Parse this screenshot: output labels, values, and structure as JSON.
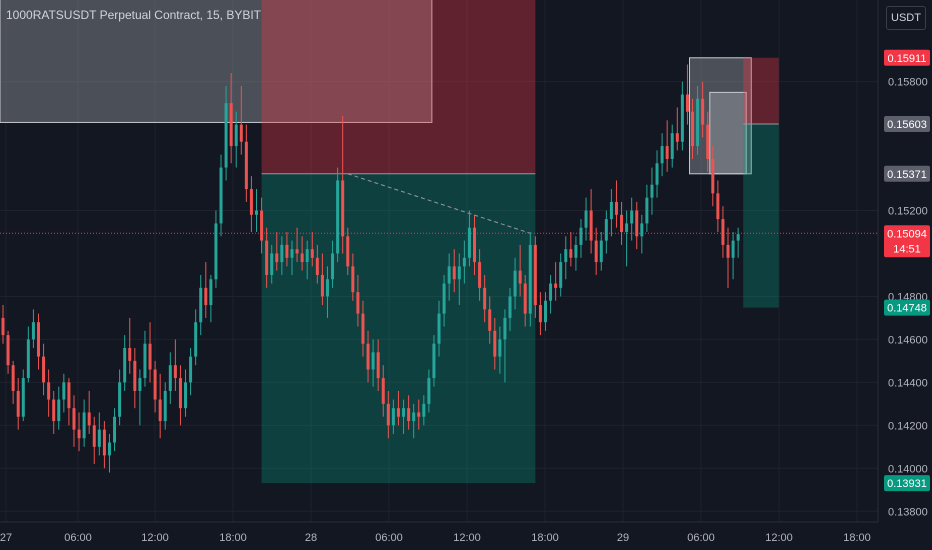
{
  "header": {
    "title": "1000RATSUSDT Perpetual Contract, 15, BYBIT",
    "currency_button": "USDT"
  },
  "colors": {
    "background": "#131722",
    "up": "#26a69a",
    "down": "#ef5350",
    "grid": "#1e222d",
    "axis_text": "#b2b5be"
  },
  "chart_data": {
    "type": "candlestick",
    "title": "1000RATSUSDT Perpetual Contract, 15, BYBIT",
    "ylim": [
      0.1375,
      0.1618
    ],
    "y_ticks": [
      "0.15800",
      "0.15200",
      "0.14800",
      "0.14600",
      "0.14400",
      "0.14200",
      "0.14000",
      "0.13800"
    ],
    "x_ticks": [
      "27",
      "06:00",
      "12:00",
      "18:00",
      "28",
      "06:00",
      "12:00",
      "18:00",
      "29",
      "06:00",
      "12:00",
      "18:00"
    ],
    "price_labels": [
      {
        "text": "0.15911",
        "value": 0.15911,
        "kind": "red"
      },
      {
        "text": "0.15603",
        "value": 0.15603,
        "kind": "gray"
      },
      {
        "text": "0.15371",
        "value": 0.15371,
        "kind": "gray"
      },
      {
        "text": "0.15094",
        "value": 0.15094,
        "kind": "current"
      },
      {
        "text": "0.14748",
        "value": 0.14748,
        "kind": "green"
      },
      {
        "text": "0.13931",
        "value": 0.13931,
        "kind": "green"
      }
    ],
    "countdown": "14:51",
    "current_price": 0.15094,
    "overlays": [
      {
        "kind": "box",
        "color": "gray",
        "bars": [
          0,
          84
        ],
        "price": [
          0.1561,
          0.1627
        ]
      },
      {
        "kind": "short-position",
        "bars": [
          51,
          105
        ],
        "entry": 0.15371,
        "stop": 0.1627,
        "target": 0.13931
      },
      {
        "kind": "box",
        "color": "gray",
        "bars": [
          136,
          147
        ],
        "price": [
          0.15371,
          0.15911
        ]
      },
      {
        "kind": "box",
        "color": "gray",
        "bars": [
          140,
          146
        ],
        "price": [
          0.15371,
          0.1575
        ]
      },
      {
        "kind": "short-position",
        "bars": [
          146,
          153
        ],
        "entry": 0.15603,
        "stop": 0.15911,
        "target": 0.14748
      },
      {
        "kind": "dashed-line",
        "from": [
          68,
          0.15371
        ],
        "to": [
          104,
          0.15094
        ]
      }
    ],
    "ohlc": [
      [
        0.147,
        0.1476,
        0.1458,
        0.1462
      ],
      [
        0.1462,
        0.1464,
        0.1444,
        0.1448
      ],
      [
        0.1448,
        0.145,
        0.143,
        0.1436
      ],
      [
        0.1436,
        0.1442,
        0.1418,
        0.1424
      ],
      [
        0.1424,
        0.1446,
        0.1422,
        0.1442
      ],
      [
        0.1442,
        0.1466,
        0.144,
        0.146
      ],
      [
        0.146,
        0.1474,
        0.1456,
        0.1468
      ],
      [
        0.1468,
        0.1472,
        0.1446,
        0.1452
      ],
      [
        0.1452,
        0.1458,
        0.1434,
        0.144
      ],
      [
        0.144,
        0.1446,
        0.1424,
        0.1432
      ],
      [
        0.1432,
        0.1436,
        0.1416,
        0.1422
      ],
      [
        0.1422,
        0.1438,
        0.1418,
        0.1432
      ],
      [
        0.1432,
        0.1444,
        0.1426,
        0.144
      ],
      [
        0.144,
        0.1442,
        0.142,
        0.1428
      ],
      [
        0.1428,
        0.1434,
        0.141,
        0.1418
      ],
      [
        0.1418,
        0.1426,
        0.1408,
        0.1414
      ],
      [
        0.1414,
        0.1432,
        0.141,
        0.1426
      ],
      [
        0.1426,
        0.1436,
        0.1416,
        0.142
      ],
      [
        0.142,
        0.1424,
        0.1402,
        0.141
      ],
      [
        0.141,
        0.1426,
        0.1406,
        0.1418
      ],
      [
        0.1418,
        0.1422,
        0.14,
        0.1406
      ],
      [
        0.1406,
        0.1416,
        0.1398,
        0.1412
      ],
      [
        0.1412,
        0.1428,
        0.1408,
        0.1424
      ],
      [
        0.1424,
        0.1446,
        0.142,
        0.144
      ],
      [
        0.144,
        0.1462,
        0.1436,
        0.1456
      ],
      [
        0.1456,
        0.147,
        0.1444,
        0.145
      ],
      [
        0.145,
        0.1456,
        0.1428,
        0.1436
      ],
      [
        0.1436,
        0.1446,
        0.142,
        0.1442
      ],
      [
        0.1442,
        0.1464,
        0.1438,
        0.1458
      ],
      [
        0.1458,
        0.1468,
        0.144,
        0.1446
      ],
      [
        0.1446,
        0.145,
        0.1426,
        0.1432
      ],
      [
        0.1432,
        0.1444,
        0.1414,
        0.1422
      ],
      [
        0.1422,
        0.144,
        0.1418,
        0.1436
      ],
      [
        0.1436,
        0.1454,
        0.143,
        0.1448
      ],
      [
        0.1448,
        0.146,
        0.1436,
        0.1442
      ],
      [
        0.1442,
        0.1448,
        0.142,
        0.1428
      ],
      [
        0.1428,
        0.1446,
        0.1424,
        0.144
      ],
      [
        0.144,
        0.1456,
        0.1434,
        0.1452
      ],
      [
        0.1452,
        0.1474,
        0.1448,
        0.1468
      ],
      [
        0.1468,
        0.149,
        0.1462,
        0.1484
      ],
      [
        0.1484,
        0.1496,
        0.147,
        0.1476
      ],
      [
        0.1476,
        0.149,
        0.1468,
        0.1488
      ],
      [
        0.1488,
        0.152,
        0.1484,
        0.1514
      ],
      [
        0.1514,
        0.1546,
        0.1508,
        0.154
      ],
      [
        0.154,
        0.1578,
        0.1534,
        0.157
      ],
      [
        0.157,
        0.1584,
        0.1542,
        0.155
      ],
      [
        0.155,
        0.1566,
        0.154,
        0.156
      ],
      [
        0.156,
        0.1578,
        0.1546,
        0.1552
      ],
      [
        0.1552,
        0.156,
        0.1524,
        0.153
      ],
      [
        0.153,
        0.1536,
        0.151,
        0.1518
      ],
      [
        0.1518,
        0.153,
        0.151,
        0.152
      ],
      [
        0.152,
        0.1526,
        0.15,
        0.1506
      ],
      [
        0.1506,
        0.1512,
        0.1484,
        0.149
      ],
      [
        0.149,
        0.1504,
        0.1486,
        0.15
      ],
      [
        0.15,
        0.151,
        0.1492,
        0.1496
      ],
      [
        0.1496,
        0.1508,
        0.149,
        0.1504
      ],
      [
        0.1504,
        0.151,
        0.1494,
        0.1498
      ],
      [
        0.1498,
        0.1506,
        0.149,
        0.1502
      ],
      [
        0.1502,
        0.1512,
        0.1496,
        0.15
      ],
      [
        0.15,
        0.1508,
        0.1492,
        0.1496
      ],
      [
        0.1496,
        0.1506,
        0.1488,
        0.1502
      ],
      [
        0.1502,
        0.151,
        0.1494,
        0.1498
      ],
      [
        0.1498,
        0.1504,
        0.1486,
        0.149
      ],
      [
        0.149,
        0.15,
        0.1476,
        0.148
      ],
      [
        0.148,
        0.1494,
        0.147,
        0.1488
      ],
      [
        0.1488,
        0.1506,
        0.1484,
        0.15
      ],
      [
        0.15,
        0.154,
        0.1496,
        0.1534
      ],
      [
        0.1534,
        0.1564,
        0.15,
        0.1508
      ],
      [
        0.1508,
        0.1512,
        0.149,
        0.1494
      ],
      [
        0.1494,
        0.15,
        0.1478,
        0.1482
      ],
      [
        0.1482,
        0.149,
        0.1466,
        0.1472
      ],
      [
        0.1472,
        0.1478,
        0.1452,
        0.1458
      ],
      [
        0.1458,
        0.1464,
        0.144,
        0.1446
      ],
      [
        0.1446,
        0.146,
        0.1438,
        0.1454
      ],
      [
        0.1454,
        0.146,
        0.1436,
        0.1442
      ],
      [
        0.1442,
        0.1448,
        0.1424,
        0.143
      ],
      [
        0.143,
        0.1436,
        0.1414,
        0.142
      ],
      [
        0.142,
        0.1432,
        0.1416,
        0.1428
      ],
      [
        0.1428,
        0.1436,
        0.142,
        0.1424
      ],
      [
        0.1424,
        0.1432,
        0.1416,
        0.1428
      ],
      [
        0.1428,
        0.1434,
        0.1418,
        0.1422
      ],
      [
        0.1422,
        0.143,
        0.1414,
        0.1426
      ],
      [
        0.1426,
        0.1432,
        0.1418,
        0.1424
      ],
      [
        0.1424,
        0.1434,
        0.142,
        0.143
      ],
      [
        0.143,
        0.1446,
        0.1426,
        0.1442
      ],
      [
        0.1442,
        0.1462,
        0.1438,
        0.1458
      ],
      [
        0.1458,
        0.1478,
        0.1452,
        0.1472
      ],
      [
        0.1472,
        0.149,
        0.1466,
        0.1486
      ],
      [
        0.1486,
        0.15,
        0.1478,
        0.1494
      ],
      [
        0.1494,
        0.1502,
        0.1482,
        0.1488
      ],
      [
        0.1488,
        0.15,
        0.1476,
        0.1494
      ],
      [
        0.1494,
        0.1506,
        0.1486,
        0.1498
      ],
      [
        0.1498,
        0.152,
        0.1494,
        0.1512
      ],
      [
        0.1512,
        0.1518,
        0.149,
        0.1496
      ],
      [
        0.1496,
        0.1502,
        0.1478,
        0.1484
      ],
      [
        0.1484,
        0.149,
        0.1468,
        0.1474
      ],
      [
        0.1474,
        0.148,
        0.1458,
        0.1464
      ],
      [
        0.1464,
        0.147,
        0.1446,
        0.1452
      ],
      [
        0.1452,
        0.1466,
        0.1444,
        0.146
      ],
      [
        0.146,
        0.1474,
        0.144,
        0.147
      ],
      [
        0.147,
        0.1484,
        0.1464,
        0.148
      ],
      [
        0.148,
        0.1498,
        0.1474,
        0.1492
      ],
      [
        0.1492,
        0.1504,
        0.148,
        0.1486
      ],
      [
        0.1486,
        0.149,
        0.1466,
        0.1472
      ],
      [
        0.1472,
        0.151,
        0.1466,
        0.1504
      ],
      [
        0.1504,
        0.1508,
        0.147,
        0.1476
      ],
      [
        0.1476,
        0.1482,
        0.1462,
        0.1468
      ],
      [
        0.1468,
        0.1482,
        0.1464,
        0.1478
      ],
      [
        0.1478,
        0.149,
        0.1472,
        0.1486
      ],
      [
        0.1486,
        0.1496,
        0.1478,
        0.1484
      ],
      [
        0.1484,
        0.15,
        0.148,
        0.1496
      ],
      [
        0.1496,
        0.1508,
        0.1488,
        0.1502
      ],
      [
        0.1502,
        0.151,
        0.1494,
        0.1498
      ],
      [
        0.1498,
        0.1508,
        0.1492,
        0.1504
      ],
      [
        0.1504,
        0.1516,
        0.1498,
        0.1512
      ],
      [
        0.1512,
        0.1526,
        0.1506,
        0.152
      ],
      [
        0.152,
        0.153,
        0.15,
        0.1506
      ],
      [
        0.1506,
        0.1512,
        0.149,
        0.1496
      ],
      [
        0.1496,
        0.151,
        0.1492,
        0.1506
      ],
      [
        0.1506,
        0.152,
        0.15,
        0.1516
      ],
      [
        0.1516,
        0.153,
        0.1508,
        0.1524
      ],
      [
        0.1524,
        0.1534,
        0.1512,
        0.1518
      ],
      [
        0.1518,
        0.1524,
        0.1504,
        0.151
      ],
      [
        0.151,
        0.152,
        0.1494,
        0.1514
      ],
      [
        0.1514,
        0.1526,
        0.1506,
        0.152
      ],
      [
        0.152,
        0.1524,
        0.1502,
        0.1508
      ],
      [
        0.1508,
        0.1518,
        0.15,
        0.1514
      ],
      [
        0.1514,
        0.1532,
        0.151,
        0.1526
      ],
      [
        0.1526,
        0.154,
        0.1518,
        0.1532
      ],
      [
        0.1532,
        0.1548,
        0.1526,
        0.1542
      ],
      [
        0.1542,
        0.1556,
        0.1536,
        0.155
      ],
      [
        0.155,
        0.1562,
        0.1538,
        0.1544
      ],
      [
        0.1544,
        0.156,
        0.154,
        0.1556
      ],
      [
        0.1556,
        0.1568,
        0.1548,
        0.1552
      ],
      [
        0.1552,
        0.158,
        0.1548,
        0.1574
      ],
      [
        0.1574,
        0.1588,
        0.156,
        0.1566
      ],
      [
        0.1566,
        0.1572,
        0.1544,
        0.155
      ],
      [
        0.155,
        0.1578,
        0.1546,
        0.1572
      ],
      [
        0.1572,
        0.158,
        0.1554,
        0.156
      ],
      [
        0.156,
        0.1566,
        0.1538,
        0.1544
      ],
      [
        0.1544,
        0.155,
        0.1522,
        0.1528
      ],
      [
        0.1528,
        0.1534,
        0.151,
        0.1516
      ],
      [
        0.1516,
        0.1522,
        0.1498,
        0.1504
      ],
      [
        0.1504,
        0.1512,
        0.1484,
        0.1498
      ],
      [
        0.1498,
        0.151,
        0.1488,
        0.1506
      ],
      [
        0.1506,
        0.1512,
        0.1498,
        0.1509
      ]
    ]
  }
}
